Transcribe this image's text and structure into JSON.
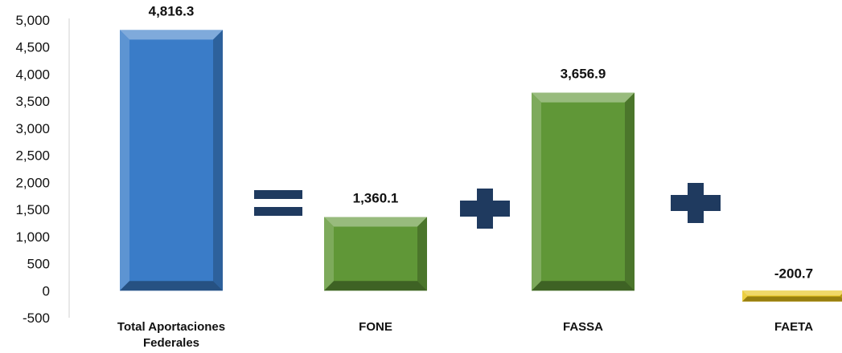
{
  "chart_data": {
    "type": "bar",
    "categories": [
      "Total Aportaciones Federales",
      "FONE",
      "FASSA",
      "FAETA"
    ],
    "category_lines": [
      [
        "Total Aportaciones",
        "Federales"
      ],
      [
        "FONE"
      ],
      [
        "FASSA"
      ],
      [
        "FAETA"
      ]
    ],
    "values": [
      4816.3,
      1360.1,
      3656.9,
      -200.7
    ],
    "value_labels": [
      "4,816.3",
      "1,360.1",
      "3,656.9",
      "-200.7"
    ],
    "bar_colors": [
      "#3a7cc8",
      "#609737",
      "#609737",
      "#e8c318"
    ],
    "ylim": [
      -500,
      5000
    ],
    "yticks": [
      -500,
      0,
      500,
      1000,
      1500,
      2000,
      2500,
      3000,
      3500,
      4000,
      4500,
      5000
    ],
    "ytick_labels": [
      "-500",
      "0",
      "500",
      "1,000",
      "1,500",
      "2,000",
      "2,500",
      "3,000",
      "3,500",
      "4,000",
      "4,500",
      "5,000"
    ],
    "grid": false,
    "legend": "none",
    "operators": [
      {
        "symbol": "equals",
        "icon": "equals-icon",
        "between": [
          0,
          1
        ],
        "color": "#1f3a5f"
      },
      {
        "symbol": "plus",
        "icon": "plus-icon",
        "between": [
          1,
          2
        ],
        "color": "#1f3a5f"
      },
      {
        "symbol": "plus",
        "icon": "plus-icon",
        "between": [
          2,
          3
        ],
        "color": "#1f3a5f"
      }
    ]
  }
}
